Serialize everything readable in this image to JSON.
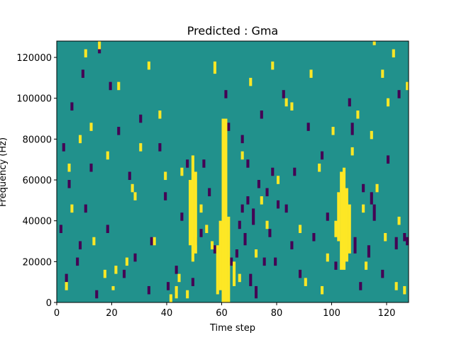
{
  "chart_data": {
    "type": "heatmap",
    "title": "Predicted : Gma",
    "xlabel": "Time step",
    "ylabel": "Frequency (Hz)",
    "xlim": [
      0,
      128
    ],
    "ylim": [
      0,
      128000
    ],
    "x_ticks": [
      0,
      20,
      40,
      60,
      80,
      100,
      120
    ],
    "y_ticks": [
      0,
      20000,
      40000,
      60000,
      80000,
      100000,
      120000
    ],
    "x_tick_labels": [
      "0",
      "20",
      "40",
      "60",
      "80",
      "100",
      "120"
    ],
    "y_tick_labels": [
      "0",
      "20000",
      "40000",
      "60000",
      "80000",
      "100000",
      "120000"
    ],
    "grid": false,
    "bin_height_hz": 4000,
    "colors": {
      "background": "#21918c",
      "high": "#fde725",
      "low": "#440154"
    },
    "high_cells": [
      [
        60,
        0,
        90000
      ],
      [
        61,
        0,
        90000
      ],
      [
        62,
        0,
        42000
      ],
      [
        103,
        16000,
        64000
      ],
      [
        104,
        16000,
        66000
      ],
      [
        105,
        20000,
        56000
      ],
      [
        106,
        24000,
        48000
      ],
      [
        102,
        30000,
        54000
      ],
      [
        101,
        32000,
        40000
      ],
      [
        49,
        20000,
        72000
      ],
      [
        50,
        24000,
        64000
      ],
      [
        48,
        28000,
        60000
      ],
      [
        58,
        4000,
        28000
      ],
      [
        59,
        6000,
        40000
      ],
      [
        64,
        8000,
        20000
      ],
      [
        20,
        6000,
        8000
      ],
      [
        21,
        14000,
        18000
      ],
      [
        27,
        54000,
        58000
      ],
      [
        41,
        0,
        4000
      ],
      [
        43,
        2000,
        8000
      ],
      [
        56,
        26000,
        30000
      ],
      [
        3,
        6000,
        10000
      ],
      [
        5,
        44000,
        48000
      ],
      [
        8,
        78000,
        82000
      ],
      [
        10,
        120000,
        124000
      ],
      [
        15,
        124000,
        128000
      ],
      [
        22,
        104000,
        108000
      ],
      [
        30,
        74000,
        78000
      ],
      [
        33,
        114000,
        118000
      ],
      [
        37,
        90000,
        94000
      ],
      [
        45,
        62000,
        66000
      ],
      [
        57,
        112000,
        118000
      ],
      [
        70,
        106000,
        110000
      ],
      [
        78,
        114000,
        118000
      ],
      [
        83,
        96000,
        100000
      ],
      [
        92,
        110000,
        114000
      ],
      [
        95,
        64000,
        68000
      ],
      [
        109,
        90000,
        94000
      ],
      [
        115,
        126000,
        128000
      ],
      [
        118,
        110000,
        114000
      ],
      [
        123,
        6000,
        10000
      ],
      [
        126,
        4000,
        8000
      ],
      [
        124,
        38000,
        42000
      ],
      [
        98,
        20000,
        24000
      ],
      [
        88,
        34000,
        38000
      ],
      [
        74,
        48000,
        52000
      ],
      [
        67,
        70000,
        74000
      ],
      [
        13,
        28000,
        32000
      ],
      [
        17,
        12000,
        16000
      ],
      [
        25,
        18000,
        22000
      ],
      [
        35,
        28000,
        32000
      ],
      [
        39,
        60000,
        64000
      ],
      [
        47,
        2000,
        6000
      ],
      [
        52,
        44000,
        48000
      ],
      [
        80,
        58000,
        62000
      ],
      [
        85,
        94000,
        98000
      ],
      [
        112,
        16000,
        20000
      ],
      [
        116,
        54000,
        58000
      ],
      [
        120,
        96000,
        100000
      ],
      [
        127,
        104000,
        108000
      ],
      [
        4,
        64000,
        68000
      ],
      [
        12,
        84000,
        88000
      ],
      [
        18,
        70000,
        74000
      ],
      [
        28,
        50000,
        54000
      ],
      [
        44,
        10000,
        14000
      ],
      [
        54,
        34000,
        38000
      ],
      [
        66,
        10000,
        14000
      ],
      [
        72,
        22000,
        26000
      ],
      [
        76,
        36000,
        40000
      ],
      [
        90,
        8000,
        12000
      ],
      [
        96,
        4000,
        8000
      ],
      [
        100,
        82000,
        86000
      ],
      [
        107,
        72000,
        76000
      ],
      [
        111,
        44000,
        48000
      ],
      [
        114,
        80000,
        84000
      ],
      [
        119,
        30000,
        34000
      ],
      [
        122,
        120000,
        124000
      ]
    ],
    "low_cells": [
      [
        126,
        30000,
        34000
      ],
      [
        127,
        28000,
        32000
      ],
      [
        123,
        26000,
        32000
      ],
      [
        114,
        48000,
        54000
      ],
      [
        115,
        40000,
        48000
      ],
      [
        113,
        22000,
        28000
      ],
      [
        106,
        96000,
        100000
      ],
      [
        107,
        82000,
        88000
      ],
      [
        108,
        24000,
        32000
      ],
      [
        105,
        50000,
        56000
      ],
      [
        111,
        54000,
        58000
      ],
      [
        96,
        70000,
        74000
      ],
      [
        91,
        84000,
        88000
      ],
      [
        86,
        62000,
        66000
      ],
      [
        83,
        44000,
        48000
      ],
      [
        80,
        46000,
        50000
      ],
      [
        78,
        62000,
        66000
      ],
      [
        76,
        52000,
        56000
      ],
      [
        75,
        18000,
        22000
      ],
      [
        73,
        56000,
        60000
      ],
      [
        72,
        2000,
        8000
      ],
      [
        71,
        38000,
        46000
      ],
      [
        70,
        8000,
        14000
      ],
      [
        69,
        48000,
        52000
      ],
      [
        68,
        28000,
        34000
      ],
      [
        67,
        44000,
        48000
      ],
      [
        66,
        36000,
        40000
      ],
      [
        65,
        22000,
        26000
      ],
      [
        63,
        18000,
        22000
      ],
      [
        57,
        24000,
        28000
      ],
      [
        55,
        52000,
        56000
      ],
      [
        53,
        66000,
        70000
      ],
      [
        52,
        32000,
        36000
      ],
      [
        50,
        28000,
        32000
      ],
      [
        48,
        54000,
        58000
      ],
      [
        47,
        66000,
        70000
      ],
      [
        45,
        40000,
        44000
      ],
      [
        43,
        14000,
        18000
      ],
      [
        40,
        6000,
        10000
      ],
      [
        39,
        50000,
        54000
      ],
      [
        37,
        74000,
        78000
      ],
      [
        34,
        28000,
        32000
      ],
      [
        33,
        4000,
        8000
      ],
      [
        30,
        88000,
        92000
      ],
      [
        28,
        20000,
        24000
      ],
      [
        26,
        60000,
        64000
      ],
      [
        24,
        12000,
        16000
      ],
      [
        22,
        82000,
        86000
      ],
      [
        19,
        104000,
        108000
      ],
      [
        18,
        34000,
        38000
      ],
      [
        15,
        122000,
        126000
      ],
      [
        14,
        2000,
        6000
      ],
      [
        12,
        64000,
        68000
      ],
      [
        10,
        44000,
        48000
      ],
      [
        9,
        110000,
        114000
      ],
      [
        8,
        26000,
        30000
      ],
      [
        7,
        18000,
        22000
      ],
      [
        5,
        94000,
        98000
      ],
      [
        4,
        56000,
        60000
      ],
      [
        3,
        10000,
        14000
      ],
      [
        2,
        74000,
        78000
      ],
      [
        1,
        34000,
        38000
      ],
      [
        49,
        8000,
        12000
      ],
      [
        60,
        62000,
        66000
      ],
      [
        62,
        84000,
        88000
      ],
      [
        98,
        40000,
        44000
      ],
      [
        101,
        16000,
        20000
      ],
      [
        110,
        6000,
        10000
      ],
      [
        118,
        12000,
        16000
      ],
      [
        120,
        68000,
        72000
      ],
      [
        124,
        100000,
        104000
      ],
      [
        93,
        30000,
        34000
      ],
      [
        88,
        12000,
        16000
      ],
      [
        85,
        26000,
        30000
      ],
      [
        82,
        100000,
        104000
      ],
      [
        79,
        18000,
        22000
      ],
      [
        77,
        32000,
        36000
      ],
      [
        74,
        90000,
        94000
      ],
      [
        69,
        66000,
        70000
      ],
      [
        67,
        78000,
        82000
      ],
      [
        61,
        100000,
        104000
      ]
    ]
  }
}
